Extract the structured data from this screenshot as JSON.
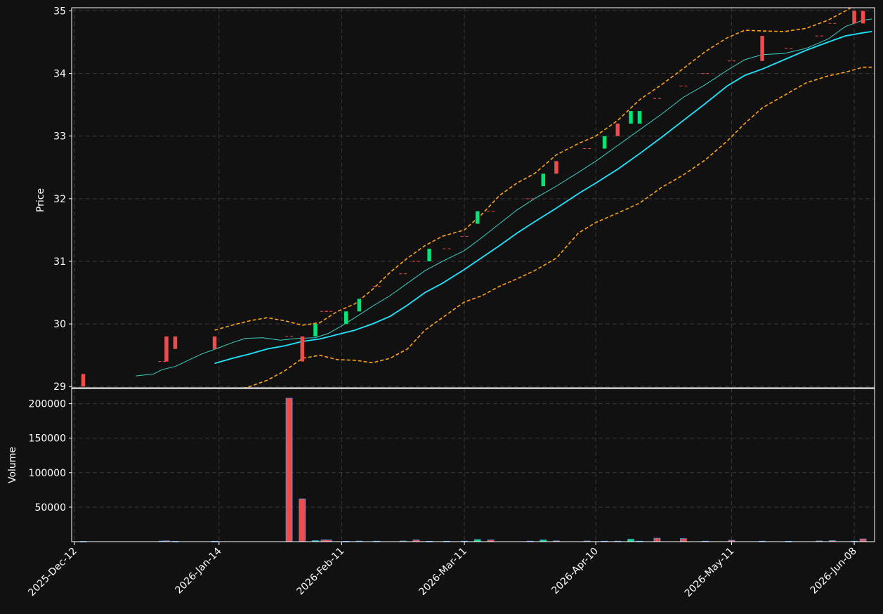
{
  "chart_data": {
    "type": "candlestick",
    "theme": {
      "background": "#111111",
      "grid_color": "#3a3a3a",
      "axis_color": "#ffffff",
      "up_color": "#00e676",
      "down_color": "#ef4c4c",
      "ma_fast_color": "#3ccfc1",
      "ma_slow_color": "#1ce5ff",
      "band_color": "#ffa31a",
      "volume_edge_color": "#4aa3ff"
    },
    "grid": true,
    "price_panel": {
      "ylabel": "Price",
      "ylim": [
        28.98,
        35.05
      ],
      "yticks": [
        29,
        30,
        31,
        32,
        33,
        34,
        35
      ]
    },
    "volume_panel": {
      "ylabel": "Volume",
      "ylim": [
        0,
        222000
      ],
      "yticks": [
        50000,
        100000,
        150000,
        200000
      ]
    },
    "x_range": [
      "2025-12-12",
      "2026-06-12"
    ],
    "x_ticks": [
      {
        "date": "2025-12-12",
        "label": "2025-Dec-12"
      },
      {
        "date": "2026-01-14",
        "label": "2026-Jan-14"
      },
      {
        "date": "2026-02-11",
        "label": "2026-Feb-11"
      },
      {
        "date": "2026-03-11",
        "label": "2026-Mar-11"
      },
      {
        "date": "2026-04-10",
        "label": "2026-Apr-10"
      },
      {
        "date": "2026-05-11",
        "label": "2026-May-11"
      },
      {
        "date": "2026-06-08",
        "label": "2026-Jun-08"
      }
    ],
    "candles": [
      {
        "date": "2025-12-14",
        "open": 29.2,
        "close": 29.0,
        "volume": 400
      },
      {
        "date": "2026-01-01",
        "open": 29.4,
        "close": 29.4,
        "volume": 900
      },
      {
        "date": "2026-01-02",
        "open": 29.8,
        "close": 29.4,
        "volume": 1200
      },
      {
        "date": "2026-01-04",
        "open": 29.8,
        "close": 29.6,
        "volume": 500
      },
      {
        "date": "2026-01-13",
        "open": 29.8,
        "close": 29.6,
        "volume": 600
      },
      {
        "date": "2026-01-30",
        "open": 29.8,
        "close": 29.8,
        "volume": 208000
      },
      {
        "date": "2026-02-02",
        "open": 29.8,
        "close": 29.4,
        "volume": 62000
      },
      {
        "date": "2026-02-05",
        "open": 29.8,
        "close": 30.0,
        "volume": 1500
      },
      {
        "date": "2026-02-07",
        "open": 30.2,
        "close": 30.2,
        "volume": 2500
      },
      {
        "date": "2026-02-08",
        "open": 30.2,
        "close": 30.2,
        "volume": 2500
      },
      {
        "date": "2026-02-12",
        "open": 30.0,
        "close": 30.2,
        "volume": 600
      },
      {
        "date": "2026-02-15",
        "open": 30.2,
        "close": 30.4,
        "volume": 900
      },
      {
        "date": "2026-02-19",
        "open": 30.6,
        "close": 30.6,
        "volume": 800
      },
      {
        "date": "2026-02-25",
        "open": 30.8,
        "close": 30.8,
        "volume": 1000
      },
      {
        "date": "2026-02-28",
        "open": 31.0,
        "close": 31.0,
        "volume": 2500
      },
      {
        "date": "2026-03-03",
        "open": 31.0,
        "close": 31.2,
        "volume": 600
      },
      {
        "date": "2026-03-07",
        "open": 31.2,
        "close": 31.2,
        "volume": 700
      },
      {
        "date": "2026-03-11",
        "open": 31.4,
        "close": 31.4,
        "volume": 800
      },
      {
        "date": "2026-03-14",
        "open": 31.6,
        "close": 31.8,
        "volume": 3000
      },
      {
        "date": "2026-03-17",
        "open": 31.8,
        "close": 31.8,
        "volume": 2500
      },
      {
        "date": "2026-03-26",
        "open": 32.0,
        "close": 32.0,
        "volume": 800
      },
      {
        "date": "2026-03-29",
        "open": 32.2,
        "close": 32.4,
        "volume": 2500
      },
      {
        "date": "2026-04-01",
        "open": 32.6,
        "close": 32.4,
        "volume": 1200
      },
      {
        "date": "2026-04-08",
        "open": 32.8,
        "close": 32.8,
        "volume": 1000
      },
      {
        "date": "2026-04-12",
        "open": 32.8,
        "close": 33.0,
        "volume": 800
      },
      {
        "date": "2026-04-15",
        "open": 33.2,
        "close": 33.0,
        "volume": 800
      },
      {
        "date": "2026-04-18",
        "open": 33.2,
        "close": 33.4,
        "volume": 3500
      },
      {
        "date": "2026-04-20",
        "open": 33.2,
        "close": 33.4,
        "volume": 800
      },
      {
        "date": "2026-04-24",
        "open": 33.6,
        "close": 33.6,
        "volume": 5000
      },
      {
        "date": "2026-04-30",
        "open": 33.8,
        "close": 33.8,
        "volume": 4500
      },
      {
        "date": "2026-05-05",
        "open": 34.0,
        "close": 34.0,
        "volume": 800
      },
      {
        "date": "2026-05-11",
        "open": 34.2,
        "close": 34.2,
        "volume": 2000
      },
      {
        "date": "2026-05-18",
        "open": 34.6,
        "close": 34.2,
        "volume": 800
      },
      {
        "date": "2026-05-24",
        "open": 34.4,
        "close": 34.4,
        "volume": 600
      },
      {
        "date": "2026-05-31",
        "open": 34.6,
        "close": 34.6,
        "volume": 1000
      },
      {
        "date": "2026-06-03",
        "open": 34.8,
        "close": 34.8,
        "volume": 1500
      },
      {
        "date": "2026-06-08",
        "open": 35.0,
        "close": 34.8,
        "volume": 800
      },
      {
        "date": "2026-06-10",
        "open": 35.0,
        "close": 34.8,
        "volume": 4000
      }
    ],
    "ma_fast": [
      [
        "2025-12-26",
        29.17
      ],
      [
        "2025-12-30",
        29.2
      ],
      [
        "2026-01-01",
        29.27
      ],
      [
        "2026-01-04",
        29.32
      ],
      [
        "2026-01-07",
        29.42
      ],
      [
        "2026-01-10",
        29.52
      ],
      [
        "2026-01-14",
        29.62
      ],
      [
        "2026-01-17",
        29.7
      ],
      [
        "2026-01-20",
        29.77
      ],
      [
        "2026-01-24",
        29.78
      ],
      [
        "2026-01-28",
        29.74
      ],
      [
        "2026-02-01",
        29.77
      ],
      [
        "2026-02-05",
        29.78
      ],
      [
        "2026-02-08",
        29.85
      ],
      [
        "2026-02-11",
        29.97
      ],
      [
        "2026-02-14",
        30.1
      ],
      [
        "2026-02-18",
        30.28
      ],
      [
        "2026-02-22",
        30.45
      ],
      [
        "2026-02-26",
        30.65
      ],
      [
        "2026-03-02",
        30.85
      ],
      [
        "2026-03-06",
        31.0
      ],
      [
        "2026-03-11",
        31.17
      ],
      [
        "2026-03-15",
        31.38
      ],
      [
        "2026-03-19",
        31.6
      ],
      [
        "2026-03-23",
        31.82
      ],
      [
        "2026-03-27",
        32.0
      ],
      [
        "2026-04-01",
        32.2
      ],
      [
        "2026-04-06",
        32.42
      ],
      [
        "2026-04-10",
        32.6
      ],
      [
        "2026-04-15",
        32.85
      ],
      [
        "2026-04-20",
        33.1
      ],
      [
        "2026-04-25",
        33.35
      ],
      [
        "2026-04-30",
        33.62
      ],
      [
        "2026-05-05",
        33.82
      ],
      [
        "2026-05-10",
        34.05
      ],
      [
        "2026-05-14",
        34.22
      ],
      [
        "2026-05-18",
        34.3
      ],
      [
        "2026-05-23",
        34.32
      ],
      [
        "2026-05-28",
        34.4
      ],
      [
        "2026-06-02",
        34.55
      ],
      [
        "2026-06-06",
        34.75
      ],
      [
        "2026-06-10",
        34.85
      ],
      [
        "2026-06-12",
        34.87
      ]
    ],
    "ma_slow": [
      [
        "2026-01-13",
        29.37
      ],
      [
        "2026-01-17",
        29.45
      ],
      [
        "2026-01-21",
        29.52
      ],
      [
        "2026-01-25",
        29.6
      ],
      [
        "2026-01-29",
        29.65
      ],
      [
        "2026-02-02",
        29.72
      ],
      [
        "2026-02-06",
        29.76
      ],
      [
        "2026-02-10",
        29.83
      ],
      [
        "2026-02-14",
        29.9
      ],
      [
        "2026-02-18",
        30.0
      ],
      [
        "2026-02-22",
        30.12
      ],
      [
        "2026-02-26",
        30.3
      ],
      [
        "2026-03-02",
        30.5
      ],
      [
        "2026-03-06",
        30.65
      ],
      [
        "2026-03-11",
        30.87
      ],
      [
        "2026-03-15",
        31.06
      ],
      [
        "2026-03-19",
        31.25
      ],
      [
        "2026-03-23",
        31.45
      ],
      [
        "2026-03-27",
        31.63
      ],
      [
        "2026-04-01",
        31.85
      ],
      [
        "2026-04-06",
        32.08
      ],
      [
        "2026-04-10",
        32.25
      ],
      [
        "2026-04-15",
        32.47
      ],
      [
        "2026-04-20",
        32.72
      ],
      [
        "2026-04-25",
        32.98
      ],
      [
        "2026-04-30",
        33.25
      ],
      [
        "2026-05-05",
        33.52
      ],
      [
        "2026-05-10",
        33.8
      ],
      [
        "2026-05-14",
        33.97
      ],
      [
        "2026-05-18",
        34.07
      ],
      [
        "2026-05-23",
        34.22
      ],
      [
        "2026-05-28",
        34.37
      ],
      [
        "2026-06-02",
        34.5
      ],
      [
        "2026-06-06",
        34.6
      ],
      [
        "2026-06-10",
        34.65
      ],
      [
        "2026-06-12",
        34.67
      ]
    ],
    "band_upper": [
      [
        "2026-01-13",
        29.9
      ],
      [
        "2026-01-17",
        29.98
      ],
      [
        "2026-01-21",
        30.05
      ],
      [
        "2026-01-25",
        30.1
      ],
      [
        "2026-01-29",
        30.05
      ],
      [
        "2026-02-02",
        29.98
      ],
      [
        "2026-02-06",
        30.02
      ],
      [
        "2026-02-10",
        30.2
      ],
      [
        "2026-02-14",
        30.32
      ],
      [
        "2026-02-18",
        30.55
      ],
      [
        "2026-02-22",
        30.82
      ],
      [
        "2026-02-26",
        31.05
      ],
      [
        "2026-03-02",
        31.25
      ],
      [
        "2026-03-06",
        31.4
      ],
      [
        "2026-03-11",
        31.5
      ],
      [
        "2026-03-15",
        31.75
      ],
      [
        "2026-03-19",
        32.05
      ],
      [
        "2026-03-23",
        32.25
      ],
      [
        "2026-03-27",
        32.4
      ],
      [
        "2026-04-01",
        32.7
      ],
      [
        "2026-04-06",
        32.88
      ],
      [
        "2026-04-10",
        33.0
      ],
      [
        "2026-04-15",
        33.25
      ],
      [
        "2026-04-20",
        33.58
      ],
      [
        "2026-04-25",
        33.82
      ],
      [
        "2026-04-30",
        34.08
      ],
      [
        "2026-05-05",
        34.35
      ],
      [
        "2026-05-10",
        34.57
      ],
      [
        "2026-05-14",
        34.69
      ],
      [
        "2026-05-18",
        34.68
      ],
      [
        "2026-05-23",
        34.67
      ],
      [
        "2026-05-28",
        34.72
      ],
      [
        "2026-06-02",
        34.85
      ],
      [
        "2026-06-06",
        35.0
      ],
      [
        "2026-06-08",
        35.08
      ]
    ],
    "band_lower": [
      [
        "2026-01-17",
        28.92
      ],
      [
        "2026-01-21",
        29.0
      ],
      [
        "2026-01-25",
        29.1
      ],
      [
        "2026-01-29",
        29.25
      ],
      [
        "2026-02-02",
        29.45
      ],
      [
        "2026-02-06",
        29.5
      ],
      [
        "2026-02-10",
        29.43
      ],
      [
        "2026-02-14",
        29.42
      ],
      [
        "2026-02-18",
        29.38
      ],
      [
        "2026-02-22",
        29.45
      ],
      [
        "2026-02-26",
        29.6
      ],
      [
        "2026-03-02",
        29.9
      ],
      [
        "2026-03-06",
        30.1
      ],
      [
        "2026-03-11",
        30.35
      ],
      [
        "2026-03-15",
        30.45
      ],
      [
        "2026-03-19",
        30.6
      ],
      [
        "2026-03-23",
        30.72
      ],
      [
        "2026-03-27",
        30.85
      ],
      [
        "2026-04-01",
        31.05
      ],
      [
        "2026-04-06",
        31.45
      ],
      [
        "2026-04-10",
        31.62
      ],
      [
        "2026-04-15",
        31.77
      ],
      [
        "2026-04-20",
        31.93
      ],
      [
        "2026-04-25",
        32.18
      ],
      [
        "2026-04-30",
        32.38
      ],
      [
        "2026-05-05",
        32.62
      ],
      [
        "2026-05-10",
        32.92
      ],
      [
        "2026-05-14",
        33.2
      ],
      [
        "2026-05-18",
        33.45
      ],
      [
        "2026-05-23",
        33.65
      ],
      [
        "2026-05-28",
        33.85
      ],
      [
        "2026-06-02",
        33.96
      ],
      [
        "2026-06-06",
        34.02
      ],
      [
        "2026-06-10",
        34.1
      ],
      [
        "2026-06-12",
        34.1
      ]
    ]
  }
}
